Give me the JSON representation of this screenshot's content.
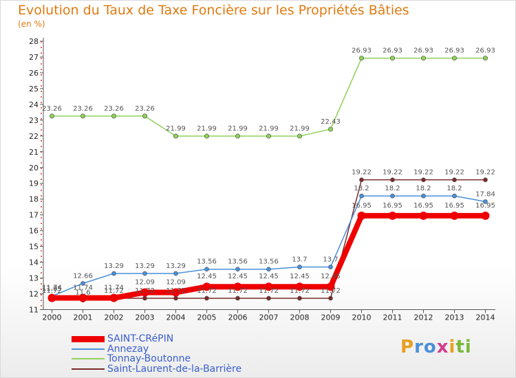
{
  "title": "Evolution du Taux de Taxe Foncière sur les Propriétés Bâties",
  "unit_label": "(en %)",
  "logo": {
    "letters": [
      "P",
      "r",
      "o",
      "x",
      "i",
      "t",
      "i"
    ],
    "colors": [
      "#e8a020",
      "#4a8fd8",
      "#4a8fd8",
      "#d43c8c",
      "#e8a020",
      "#7ab83a",
      "#7ab83a"
    ]
  },
  "chart_data": {
    "type": "line",
    "title": "Evolution du Taux de Taxe Foncière sur les Propriétés Bâties",
    "ylabel": "(en %)",
    "xlabel": "",
    "x": [
      "2000",
      "2001",
      "2002",
      "2003",
      "2004",
      "2005",
      "2006",
      "2007",
      "2008",
      "2009",
      "2010",
      "2011",
      "2012",
      "2013",
      "2014"
    ],
    "ylim": [
      11,
      28
    ],
    "yticks": [
      11,
      12,
      13,
      14,
      15,
      16,
      17,
      18,
      19,
      20,
      21,
      22,
      23,
      24,
      25,
      26,
      27,
      28
    ],
    "grid": false,
    "series": [
      {
        "name": "SAINT-CRéPIN",
        "color": "#ee0000",
        "values": [
          11.74,
          11.74,
          11.74,
          12.09,
          12.09,
          12.45,
          12.45,
          12.45,
          12.45,
          12.45,
          16.95,
          16.95,
          16.95,
          16.95,
          16.95
        ],
        "labels": [
          "11.74",
          "11.74",
          "11.74",
          "12.09",
          "12.09",
          "12.45",
          "12.45",
          "12.45",
          "12.45",
          "12.45",
          "16.95",
          "16.95",
          "16.95",
          "16.95",
          "16.95"
        ]
      },
      {
        "name": "Annezay",
        "color": "#4a90d9",
        "values": [
          11.85,
          12.66,
          13.29,
          13.29,
          13.29,
          13.56,
          13.56,
          13.56,
          13.7,
          13.7,
          18.2,
          18.2,
          18.2,
          18.2,
          17.84
        ],
        "labels": [
          "11.85",
          "12.66",
          "13.29",
          "13.29",
          "13.29",
          "13.56",
          "13.56",
          "13.56",
          "13.7",
          "13.7",
          "18.2",
          "18.2",
          "18.2",
          "18.2",
          "17.84"
        ]
      },
      {
        "name": "Tonnay-Boutonne",
        "color": "#8fd05a",
        "values": [
          23.26,
          23.26,
          23.26,
          23.26,
          21.99,
          21.99,
          21.99,
          21.99,
          21.99,
          22.43,
          26.93,
          26.93,
          26.93,
          26.93,
          26.93
        ],
        "labels": [
          "23.26",
          "23.26",
          "23.26",
          "23.26",
          "21.99",
          "21.99",
          "21.99",
          "21.99",
          "21.99",
          "22.43",
          "26.93",
          "26.93",
          "26.93",
          "26.93",
          "26.93"
        ]
      },
      {
        "name": "Saint-Laurent-de-la-Barrière",
        "color": "#7a2a2a",
        "values": [
          11.72,
          11.6,
          11.72,
          11.72,
          11.72,
          11.72,
          11.72,
          11.72,
          11.72,
          11.72,
          19.22,
          19.22,
          19.22,
          19.22,
          19.22
        ],
        "labels": [
          "11.72",
          "11.6",
          "11.72",
          "11.72",
          "11.72",
          "11.72",
          "11.72",
          "11.72",
          "11.72",
          "11.72",
          "19.22",
          "19.22",
          "19.22",
          "19.22",
          "19.22"
        ]
      }
    ],
    "legend": "bottom-left"
  }
}
